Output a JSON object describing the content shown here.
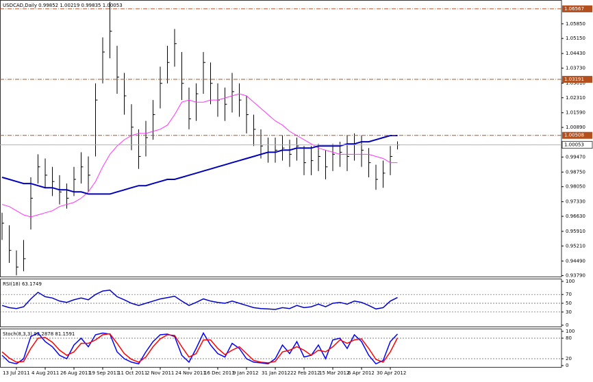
{
  "chart_data": [
    {
      "type": "ohlc",
      "title": "USDCAD,Daily 0.99852 1.00219 0.99835 1.00053",
      "categories": [
        null,
        null,
        "13 Jul 2011",
        null,
        null,
        null,
        "4 Aug 2011",
        null,
        null,
        null,
        "26 Aug 2011",
        null,
        null,
        null,
        "19 Sep 2011",
        null,
        null,
        null,
        "11 Oct 2011",
        null,
        null,
        null,
        "2 Nov 2011",
        null,
        null,
        null,
        "24 Nov 2011",
        null,
        null,
        null,
        "16 Dec 2011",
        null,
        null,
        null,
        "9 Jan 2012",
        null,
        null,
        null,
        "31 Jan 2012",
        null,
        null,
        null,
        "22 Feb 2012",
        null,
        null,
        null,
        "15 Mar 2012",
        null,
        null,
        null,
        "6 Apr 2012",
        null,
        null,
        null,
        "30 Apr 2012",
        null
      ],
      "high": [
        0.968,
        0.962,
        0.95,
        0.955,
        0.985,
        0.996,
        0.994,
        0.99,
        0.986,
        0.982,
        0.99,
        0.997,
        0.995,
        1.03,
        1.052,
        1.069,
        1.048,
        1.035,
        1.02,
        1.008,
        1.012,
        1.022,
        1.038,
        1.048,
        1.056,
        1.045,
        1.028,
        1.03,
        1.045,
        1.04,
        1.03,
        1.028,
        1.035,
        1.03,
        1.024,
        1.015,
        1.008,
        1.004,
        1.004,
        1.005,
        1.003,
        1.004,
        1.0,
        1.0,
        1.001,
        0.998,
        1.001,
        1.002,
        1.005,
        1.006,
        1.005,
        0.999,
        0.991,
        0.993,
        1.0,
        1.00219
      ],
      "low": [
        0.955,
        0.944,
        0.938,
        0.94,
        0.96,
        0.982,
        0.98,
        0.976,
        0.972,
        0.97,
        0.976,
        0.982,
        0.978,
        0.995,
        1.03,
        1.042,
        1.025,
        1.015,
        0.998,
        0.989,
        0.995,
        1.003,
        1.018,
        1.03,
        1.038,
        1.022,
        1.008,
        1.012,
        1.025,
        1.02,
        1.014,
        1.012,
        1.016,
        1.014,
        1.006,
        1.0,
        0.994,
        0.992,
        0.992,
        0.993,
        0.99,
        0.993,
        0.986,
        0.986,
        0.988,
        0.984,
        0.988,
        0.99,
        0.988,
        0.993,
        0.99,
        0.985,
        0.979,
        0.98,
        0.986,
        0.99835
      ],
      "close": [
        0.963,
        0.95,
        0.942,
        0.946,
        0.975,
        0.99,
        0.986,
        0.983,
        0.978,
        0.975,
        0.984,
        0.99,
        0.986,
        1.022,
        1.045,
        1.055,
        1.033,
        1.024,
        1.009,
        0.995,
        1.004,
        1.015,
        1.03,
        1.04,
        1.049,
        1.03,
        1.013,
        1.025,
        1.04,
        1.03,
        1.022,
        1.02,
        1.026,
        1.022,
        1.015,
        1.008,
        1.0,
        0.997,
        0.998,
        0.999,
        0.996,
        1.0,
        0.992,
        0.993,
        0.995,
        0.99,
        0.996,
        0.997,
        0.995,
        1.001,
        0.998,
        0.992,
        0.984,
        0.987,
        0.995,
        1.00053
      ],
      "color": "#000000",
      "lines": [
        {
          "color": "#ff33ff",
          "values": [
            0.972,
            0.971,
            0.969,
            0.967,
            0.966,
            0.967,
            0.968,
            0.969,
            0.971,
            0.972,
            0.973,
            0.975,
            0.978,
            0.983,
            0.99,
            0.996,
            1.0,
            1.003,
            1.005,
            1.006,
            1.006,
            1.007,
            1.008,
            1.01,
            1.015,
            1.021,
            1.022,
            1.021,
            1.021,
            1.022,
            1.022,
            1.023,
            1.024,
            1.025,
            1.024,
            1.021,
            1.018,
            1.015,
            1.012,
            1.01,
            1.007,
            1.005,
            1.003,
            1.001,
            0.999,
            0.998,
            0.997,
            0.996,
            0.996,
            0.996,
            0.996,
            0.996,
            0.995,
            0.994,
            0.992,
            0.992
          ]
        },
        {
          "color": "#0000bb",
          "values": [
            0.985,
            0.984,
            0.983,
            0.982,
            0.982,
            0.981,
            0.98,
            0.98,
            0.979,
            0.979,
            0.978,
            0.978,
            0.977,
            0.977,
            0.977,
            0.977,
            0.978,
            0.979,
            0.98,
            0.981,
            0.981,
            0.982,
            0.983,
            0.984,
            0.984,
            0.985,
            0.986,
            0.987,
            0.988,
            0.989,
            0.99,
            0.991,
            0.992,
            0.993,
            0.994,
            0.995,
            0.996,
            0.997,
            0.997,
            0.998,
            0.998,
            0.999,
            0.999,
            0.999,
            1.0,
            1.0,
            1.0,
            1.0,
            1.001,
            1.001,
            1.002,
            1.002,
            1.003,
            1.004,
            1.005,
            1.005
          ]
        }
      ],
      "levels": [
        1.06567,
        1.03191,
        1.00508
      ],
      "level_color": "#b4501e",
      "last_price": 1.00053,
      "ylim": [
        0.9381,
        1.0686
      ],
      "yticks": [
        {
          "value": 0.9379,
          "label": "0.93790"
        },
        {
          "value": 0.9449,
          "label": "0.94490"
        },
        {
          "value": 0.9521,
          "label": "0.95210"
        },
        {
          "value": 0.9591,
          "label": "0.95910"
        },
        {
          "value": 0.9663,
          "label": "0.96630"
        },
        {
          "value": 0.9733,
          "label": "0.97330"
        },
        {
          "value": 0.9805,
          "label": "0.98050"
        },
        {
          "value": 0.9875,
          "label": "0.98750"
        },
        {
          "value": 0.9947,
          "label": "0.99470"
        },
        {
          "value": 1.0089,
          "label": "1.00890"
        },
        {
          "value": 1.0159,
          "label": "1.01590"
        },
        {
          "value": 1.0231,
          "label": "1.02310"
        },
        {
          "value": 1.0301,
          "label": "1.03010"
        },
        {
          "value": 1.0373,
          "label": "1.03730"
        },
        {
          "value": 1.0443,
          "label": "1.04430"
        },
        {
          "value": 1.0515,
          "label": "1.05150"
        },
        {
          "value": 1.0585,
          "label": "1.05850"
        }
      ],
      "grid": false
    },
    {
      "type": "line",
      "title": "RSI(18) 63.1749",
      "color": "#0000cc",
      "values": [
        45,
        40,
        38,
        42,
        60,
        75,
        65,
        62,
        55,
        52,
        58,
        62,
        58,
        70,
        78,
        80,
        65,
        58,
        50,
        45,
        50,
        55,
        60,
        63,
        66,
        55,
        45,
        52,
        60,
        55,
        52,
        50,
        55,
        50,
        45,
        40,
        38,
        37,
        36,
        40,
        38,
        45,
        40,
        42,
        48,
        42,
        50,
        52,
        48,
        55,
        52,
        45,
        37,
        40,
        55,
        63.1749
      ],
      "ylim": [
        0,
        100
      ],
      "yticks": [
        0,
        30,
        50,
        70,
        100
      ],
      "grid": true
    },
    {
      "type": "line",
      "title": "Stoch(8,3,3) 92.2878 81.1591",
      "series": [
        {
          "color": "#0000ff",
          "values": [
            30,
            10,
            5,
            20,
            85,
            95,
            70,
            55,
            30,
            20,
            60,
            80,
            55,
            90,
            95,
            92,
            40,
            20,
            10,
            5,
            40,
            70,
            90,
            92,
            85,
            30,
            10,
            50,
            95,
            60,
            35,
            25,
            65,
            50,
            20,
            10,
            8,
            5,
            20,
            60,
            35,
            70,
            25,
            30,
            60,
            20,
            75,
            80,
            50,
            90,
            70,
            30,
            5,
            15,
            70,
            92.2878
          ]
        },
        {
          "color": "#ff0000",
          "values": [
            40,
            22,
            10,
            12,
            50,
            80,
            82,
            68,
            45,
            30,
            40,
            65,
            65,
            75,
            90,
            93,
            65,
            35,
            18,
            10,
            25,
            55,
            78,
            90,
            88,
            55,
            25,
            35,
            75,
            75,
            50,
            32,
            45,
            55,
            35,
            15,
            10,
            8,
            12,
            40,
            45,
            55,
            45,
            30,
            45,
            40,
            55,
            75,
            65,
            75,
            78,
            50,
            18,
            10,
            40,
            81.1591
          ]
        }
      ],
      "ylim": [
        0,
        100
      ],
      "yticks": [
        0,
        20,
        80,
        100
      ],
      "grid": true
    }
  ]
}
